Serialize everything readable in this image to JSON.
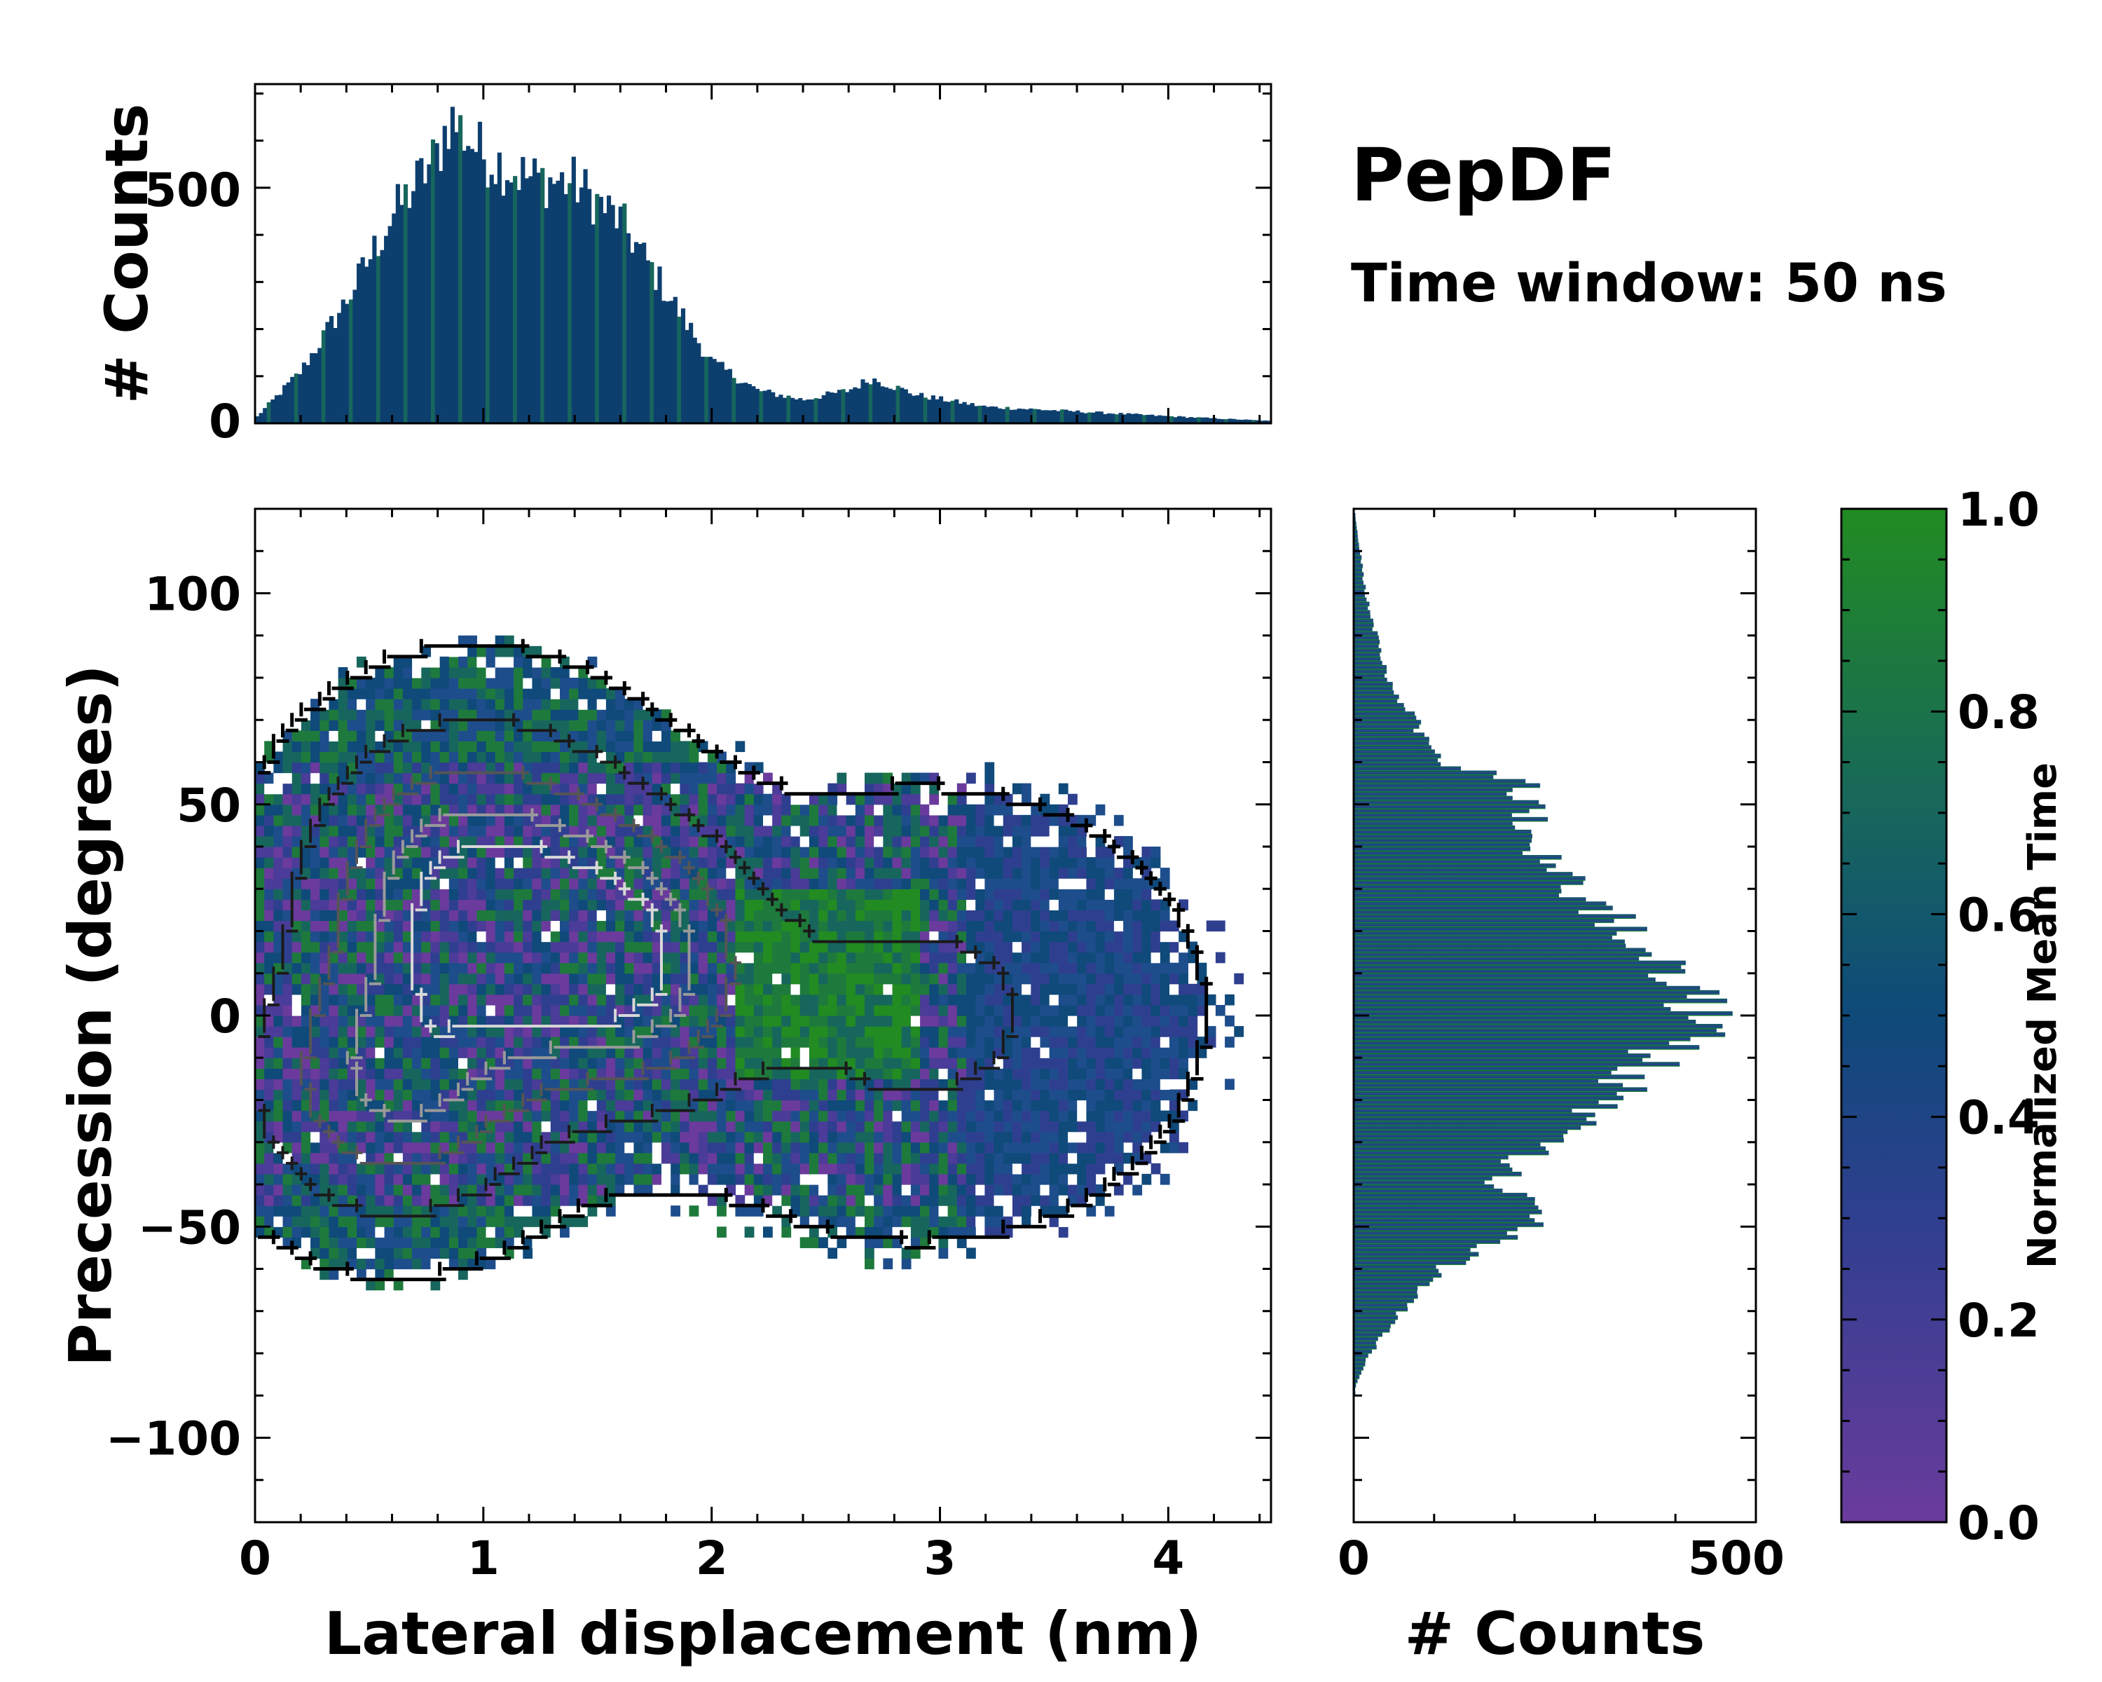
{
  "chart_data": {
    "type": "heatmap",
    "title": "PepDF",
    "subtitle": "Time window: 50 ns",
    "colors": {
      "cmap_low": "#6a3b9c",
      "cmap_mid": "#1e4d8c",
      "cmap_high": "#228b22",
      "hist": "#0d3f6e",
      "contour_dark": "#111111",
      "contour_light": "#d8d8d8"
    },
    "main": {
      "xlabel": "Lateral displacement (nm)",
      "ylabel": "Precession (degrees)",
      "xlim": [
        0,
        4.45
      ],
      "ylim": [
        -120,
        120
      ],
      "xticks": [
        0,
        1,
        2,
        3,
        4
      ],
      "xtick_labels": [
        "0",
        "1",
        "2",
        "3",
        "4"
      ],
      "yticks": [
        -100,
        -50,
        0,
        50,
        100
      ],
      "ytick_labels": [
        "−100",
        "−50",
        "0",
        "50",
        "100"
      ],
      "clusters": [
        {
          "x": 0.95,
          "y": 28,
          "sx": 0.45,
          "sy": 25,
          "weight": 1.0
        },
        {
          "x": 1.6,
          "y": 12,
          "sx": 0.35,
          "sy": 20,
          "weight": 0.85
        },
        {
          "x": 0.6,
          "y": -18,
          "sx": 0.4,
          "sy": 20,
          "weight": 0.7
        },
        {
          "x": 2.9,
          "y": 0,
          "sx": 0.7,
          "sy": 30,
          "weight": 0.3
        }
      ]
    },
    "top_hist": {
      "ylabel": "# Counts",
      "ylim": [
        0,
        720
      ],
      "yticks": [
        0,
        500
      ],
      "ytick_labels": [
        "0",
        "500"
      ],
      "x": [
        0.0,
        0.2,
        0.4,
        0.6,
        0.8,
        0.85,
        1.0,
        1.2,
        1.4,
        1.6,
        1.8,
        2.0,
        2.2,
        2.4,
        2.6,
        2.7,
        2.9,
        3.2,
        3.6,
        4.0,
        4.45
      ],
      "values": [
        10,
        110,
        260,
        440,
        570,
        650,
        570,
        520,
        510,
        430,
        280,
        130,
        70,
        50,
        70,
        95,
        60,
        35,
        25,
        15,
        5
      ]
    },
    "right_hist": {
      "xlabel": "# Counts",
      "xlim": [
        0,
        500
      ],
      "xticks": [
        0,
        500
      ],
      "xtick_labels": [
        "0",
        "500"
      ],
      "y": [
        118,
        100,
        80,
        60,
        55,
        50,
        40,
        30,
        20,
        15,
        5,
        0,
        -10,
        -20,
        -30,
        -40,
        -45,
        -50,
        -60,
        -70,
        -80,
        -88
      ],
      "values": [
        2,
        15,
        40,
        110,
        210,
        215,
        230,
        280,
        340,
        390,
        420,
        450,
        370,
        320,
        230,
        180,
        230,
        210,
        110,
        60,
        20,
        2
      ]
    },
    "colorbar": {
      "label": "Normalized Mean Time",
      "ticks": [
        0.0,
        0.2,
        0.4,
        0.6,
        0.8,
        1.0
      ],
      "tick_labels": [
        "0.0",
        "0.2",
        "0.4",
        "0.6",
        "0.8",
        "1.0"
      ]
    }
  }
}
